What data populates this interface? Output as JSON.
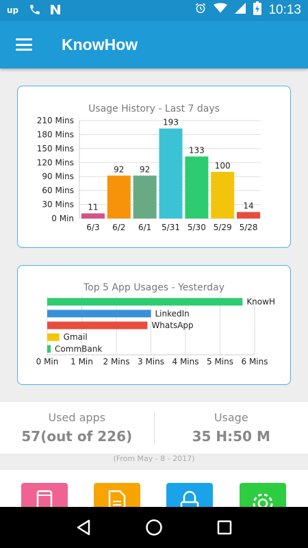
{
  "status_bar": {
    "time": "10:13",
    "left_icons": [
      "upwork-icon",
      "phone-icon",
      "n-notification-icon"
    ],
    "right_icons": [
      "alarm-icon",
      "wifi-icon",
      "signal-icon",
      "battery-charging-icon"
    ]
  },
  "app_bar": {
    "title": "KnowHow",
    "menu_icon": "hamburger-menu-icon"
  },
  "usage_history_card": {
    "chart_data": {
      "type": "bar",
      "title": "Usage History - Last 7 days",
      "categories": [
        "6/3",
        "6/2",
        "6/1",
        "5/31",
        "5/30",
        "5/29",
        "5/28"
      ],
      "values": [
        11,
        92,
        92,
        193,
        133,
        100,
        14
      ],
      "colors": [
        "#d6508a",
        "#f7930b",
        "#68aa84",
        "#3cc2d5",
        "#2ecc71",
        "#f2c50c",
        "#e84c3d"
      ],
      "y_ticks": [
        "0 Min",
        "30 Mins",
        "60 Mins",
        "90 Mins",
        "120 Mins",
        "150 Mins",
        "180 Mins",
        "210 Mins"
      ],
      "ylim": [
        0,
        210
      ],
      "grid": true,
      "data_labels": true
    }
  },
  "top_apps_card": {
    "chart_data": {
      "type": "bar",
      "orientation": "horizontal",
      "title": "Top 5 App Usages - Yesterday",
      "categories": [
        "KnowH",
        "LinkedIn",
        "WhatsApp",
        "Gmail",
        "CommBank"
      ],
      "values": [
        5.65,
        3.0,
        2.9,
        0.35,
        0.1
      ],
      "colors": [
        "#2ecc71",
        "#3a8fd9",
        "#e84c3d",
        "#f2c50c",
        "#2ecc71"
      ],
      "x_ticks": [
        "0 Min",
        "1 Min",
        "2 Mins",
        "3 Mins",
        "4 Mins",
        "5 Mins",
        "6 Mins"
      ],
      "xlim": [
        0,
        6
      ],
      "grid": true
    }
  },
  "stats": {
    "used_apps_label": "Used apps",
    "used_apps_value": "57(out of 226)",
    "usage_label": "Usage",
    "usage_value": "35 H:50 M",
    "from_note": "(From May - 8 - 2017)"
  },
  "tiles": [
    {
      "icon": "phone-device-icon",
      "color": "#f06292"
    },
    {
      "icon": "document-icon",
      "color": "#f7a400"
    },
    {
      "icon": "lock-icon",
      "color": "#1aa3e8"
    },
    {
      "icon": "gear-icon",
      "color": "#2ecc40"
    }
  ],
  "nav_bar": {
    "icons": [
      "back-icon",
      "home-icon",
      "recents-icon"
    ]
  }
}
